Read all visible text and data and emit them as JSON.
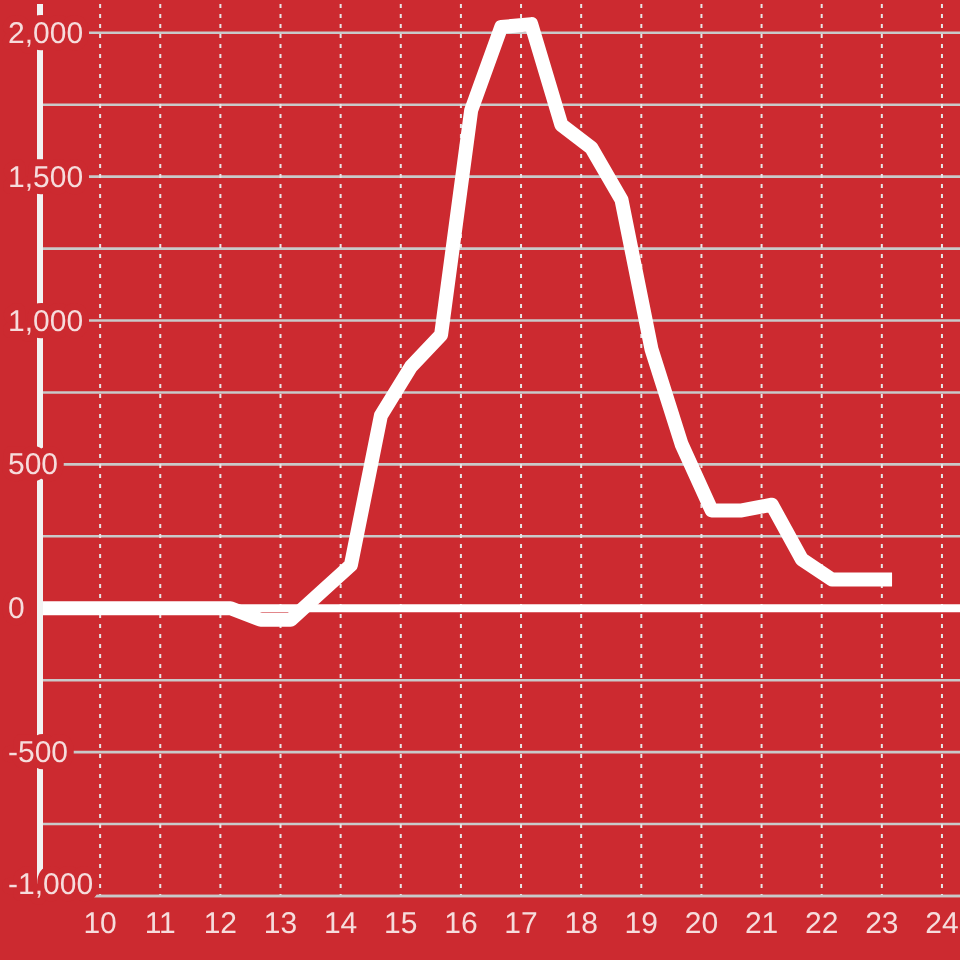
{
  "chart_data": {
    "type": "line",
    "x": [
      9,
      12.17,
      12.67,
      13.17,
      13.67,
      14.17,
      14.67,
      15.17,
      15.67,
      16.17,
      16.67,
      17.17,
      17.67,
      18.17,
      18.67,
      19.17,
      19.67,
      20.17,
      20.67,
      21.17,
      21.67,
      22.17,
      22.67,
      23.17
    ],
    "values": [
      0,
      0,
      -40,
      -40,
      55,
      150,
      670,
      840,
      950,
      1730,
      2020,
      2030,
      1680,
      1600,
      1420,
      900,
      570,
      340,
      340,
      360,
      170,
      100,
      100,
      100
    ],
    "color": "#ffffff",
    "xlim": [
      9,
      24.3
    ],
    "ylim": [
      -1000,
      2100
    ],
    "xticks": [
      10,
      11,
      12,
      13,
      14,
      15,
      16,
      17,
      18,
      19,
      20,
      21,
      22,
      23,
      24
    ],
    "yticks": [
      {
        "value": -1000,
        "label": "-1,000"
      },
      {
        "value": -750,
        "label": null
      },
      -500,
      {
        "value": -250,
        "label": null
      },
      0,
      {
        "value": 250,
        "label": null
      },
      500,
      {
        "value": 750,
        "label": null
      },
      {
        "value": 1000,
        "label": "1,000"
      },
      {
        "value": 1250,
        "label": null
      },
      {
        "value": 1500,
        "label": "1,500"
      },
      {
        "value": 1750,
        "label": null
      },
      {
        "value": 2000,
        "label": "2,000"
      }
    ],
    "grid": true,
    "marker": "none",
    "line_style": "solid",
    "ref_lines": [
      {
        "axis": "y",
        "value": 0,
        "color": "#ffffff"
      }
    ]
  }
}
